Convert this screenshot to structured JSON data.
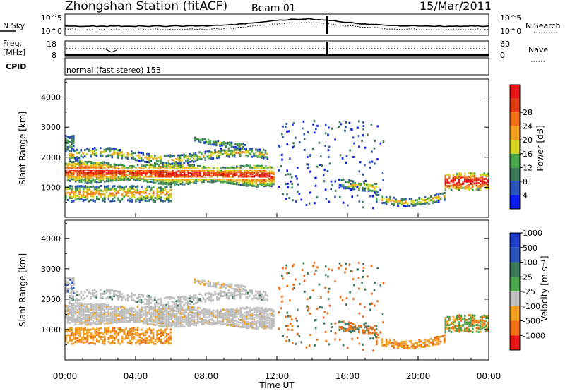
{
  "header": {
    "station_title": "Zhongshan Station (fitACF)",
    "beam_label": "Beam 01",
    "date_label": "15/Mar/2011"
  },
  "top_panels": {
    "noise_left_label": "N.Sky",
    "noise_right_label": "N.Search",
    "noise_ticks": [
      "10^5",
      "10^0"
    ],
    "freq_left_label_1": "Freq.",
    "freq_left_label_2": "[MHz]",
    "freq_left_ticks": [
      "18",
      "8"
    ],
    "nave_right_label": "Nave",
    "nave_right_ticks": [
      "60",
      "0"
    ],
    "cpid_label": "CPID",
    "cpid_text": "normal (fast stereo) 153"
  },
  "colors": {
    "power": [
      "#0a1cf0",
      "#2a55b8",
      "#3c7a5a",
      "#4aa54a",
      "#d7d21e",
      "#f0a01e",
      "#f06e14",
      "#e03c14",
      "#e61414"
    ],
    "velocity": [
      "#e61414",
      "#f06e14",
      "#f0a01e",
      "#bfbfbf",
      "#4aa54a",
      "#3c7a5a",
      "#2a55b8",
      "#1e3cc8"
    ],
    "gray": "#bfbfbf"
  },
  "chart_data": [
    {
      "type": "heatmap",
      "quantity": "power",
      "xlabel": "",
      "ylabel": "Slant Range [km]",
      "yticks": [
        1000,
        2000,
        3000,
        4000
      ],
      "ylim": [
        0,
        4600
      ],
      "xlim_hours": [
        0,
        24
      ],
      "colorbar_label": "Power [dB]",
      "colorbar_ticks": [
        "4",
        "8",
        "12",
        "16",
        "20",
        "24",
        "28"
      ]
    },
    {
      "type": "heatmap",
      "quantity": "velocity",
      "xlabel": "Time UT",
      "ylabel": "Slant Range [km]",
      "yticks": [
        1000,
        2000,
        3000,
        4000
      ],
      "ylim": [
        0,
        4600
      ],
      "xlim_hours": [
        0,
        24
      ],
      "xticks": [
        "00:00",
        "04:00",
        "08:00",
        "12:00",
        "16:00",
        "20:00",
        "00:00"
      ],
      "colorbar_label": "Velocity [m s⁻¹]",
      "colorbar_ticks": [
        "-1000",
        "-500",
        "-100",
        "-25",
        "25",
        "100",
        "500",
        "1000"
      ]
    }
  ]
}
